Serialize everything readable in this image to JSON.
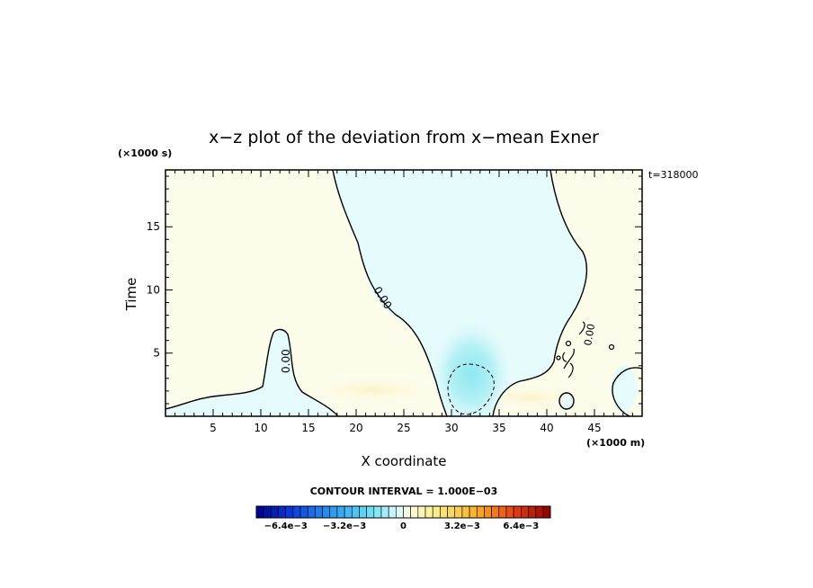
{
  "chart_data": {
    "type": "heatmap",
    "title": "x−z plot of the deviation from x−mean Exner",
    "xlabel": "X coordinate",
    "ylabel": "Time",
    "x_unit": "(×1000 m)",
    "y_unit": "(×1000 s)",
    "time_label": "t=318000",
    "xlim": [
      0,
      50
    ],
    "ylim": [
      0,
      19.5
    ],
    "xticks": [
      5,
      10,
      15,
      20,
      25,
      30,
      35,
      40,
      45
    ],
    "yticks": [
      5,
      10,
      15
    ],
    "contour_interval_label": "CONTOUR INTERVAL = 1.000E−03",
    "zero_contour_labels": [
      "0.00",
      "0.00",
      "0.00"
    ],
    "colorbar": {
      "min": -0.008,
      "max": 0.008,
      "n_bins": 40,
      "tick_values": [
        -0.0064,
        -0.0032,
        0,
        0.0032,
        0.0064
      ],
      "tick_labels": [
        "−6.4e−3",
        "−3.2e−3",
        "0",
        "3.2e−3",
        "6.4e−3"
      ]
    },
    "regions": [
      {
        "name": "negative central column",
        "sign": "negative",
        "approx_value": -0.0002
      },
      {
        "name": "negative core",
        "x": 32,
        "y": 2.7,
        "approx_value": -0.0012
      },
      {
        "name": "positive band near surface",
        "sign": "positive",
        "approx_value": 0.0003
      }
    ]
  }
}
